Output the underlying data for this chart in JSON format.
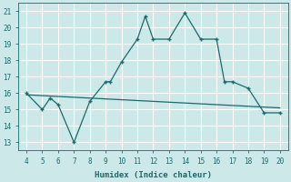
{
  "xlabel": "Humidex (Indice chaleur)",
  "bg_color": "#cce8e8",
  "grid_color": "#ffffff",
  "line_color": "#1a6b6b",
  "xlim": [
    3.5,
    20.5
  ],
  "ylim": [
    12.5,
    21.5
  ],
  "xticks": [
    4,
    5,
    6,
    7,
    8,
    9,
    10,
    11,
    12,
    13,
    14,
    15,
    16,
    17,
    18,
    19,
    20
  ],
  "yticks": [
    13,
    14,
    15,
    16,
    17,
    18,
    19,
    20,
    21
  ],
  "curve_x": [
    4,
    5,
    5.5,
    6,
    7,
    8,
    9,
    9.3,
    10,
    11,
    11.5,
    12,
    13,
    14,
    15,
    16,
    16.5,
    17,
    18,
    19,
    20
  ],
  "curve_y": [
    16.0,
    15.0,
    15.7,
    15.3,
    13.0,
    15.5,
    16.7,
    16.7,
    17.9,
    19.3,
    20.7,
    19.3,
    19.3,
    20.9,
    19.3,
    19.3,
    16.7,
    16.7,
    16.3,
    14.8,
    14.8
  ],
  "trend_x": [
    4,
    20
  ],
  "trend_y": [
    15.9,
    15.1
  ]
}
